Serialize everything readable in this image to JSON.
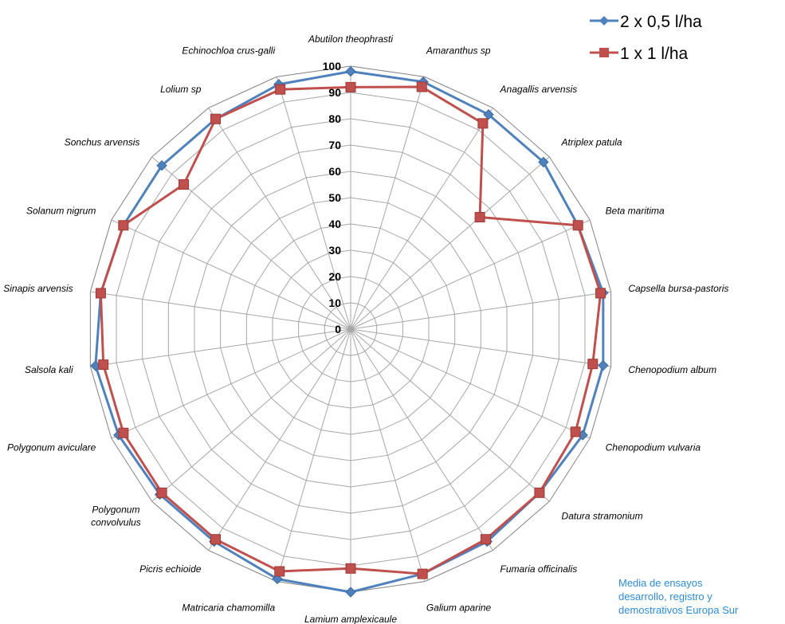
{
  "chart_data": {
    "type": "radar",
    "categories": [
      "Abutilon theophrasti",
      "Amaranthus sp",
      "Anagallis arvensis",
      "Atriplex patula",
      "Beta maritima",
      "Capsella bursa-pastoris",
      "Chenopodium album",
      "Chenopodium vulvaria",
      "Datura stramonium",
      "Fumaria officinalis",
      "Galium aparine",
      "Lamium amplexicaule",
      "Matricaria chamomilla",
      "Picris echioide",
      "Polygonum convolvulus",
      "Polygonum aviculare",
      "Salsola kali",
      "Sinapis arvensis",
      "Solanum nigrum",
      "Sonchus arvensis",
      "Lolium sp",
      "Echinochloa crus-galli"
    ],
    "ticks": [
      "0",
      "10",
      "20",
      "30",
      "40",
      "50",
      "60",
      "70",
      "80",
      "90",
      "100"
    ],
    "rlim": [
      0,
      100
    ],
    "grid": true,
    "legend_position": "top-right",
    "series": [
      {
        "name": "2 x 0,5 l/ha",
        "color": "#4F81BD",
        "marker": "diamond",
        "values": [
          98,
          98,
          97,
          97,
          95,
          97,
          97,
          97,
          95,
          96,
          97,
          100,
          99,
          96,
          96,
          97,
          98,
          96,
          95,
          95,
          95,
          97
        ]
      },
      {
        "name": "1 x 1 l/ha",
        "color": "#C0504D",
        "marker": "square",
        "values": [
          92,
          96,
          93,
          65,
          95,
          96,
          93,
          94,
          95,
          95,
          97,
          91,
          96,
          95,
          95,
          95,
          95,
          96,
          95,
          84,
          95,
          95
        ]
      }
    ]
  },
  "note": {
    "text": "Media de ensayos\ndesarrollo, registro y\ndemostrativos Europa Sur",
    "color": "#2E8BD8"
  }
}
